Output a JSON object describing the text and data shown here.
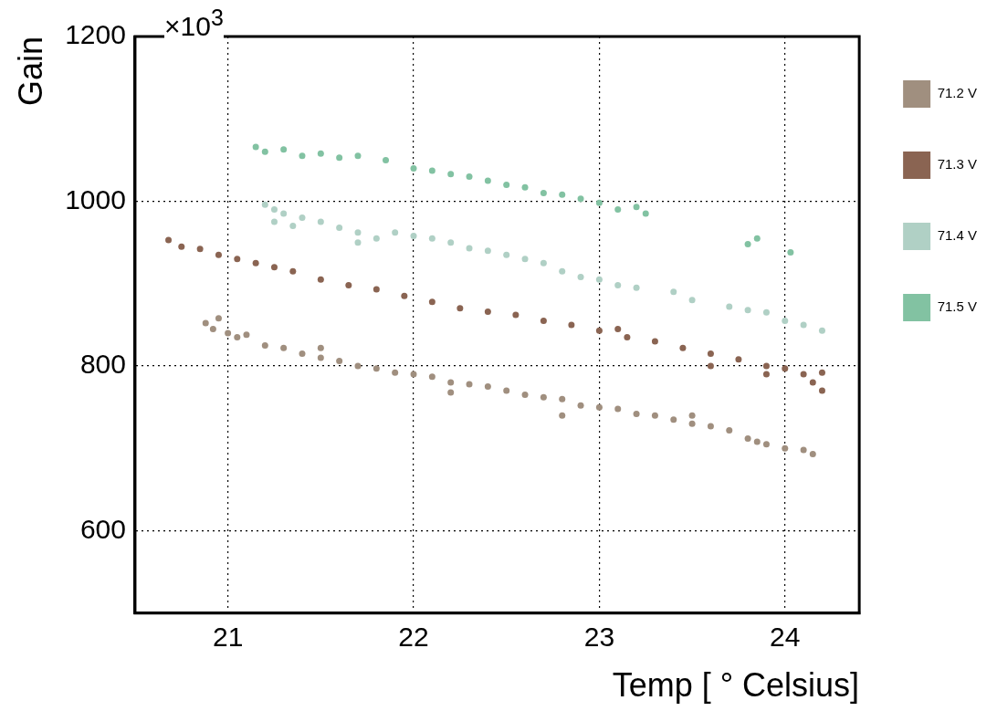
{
  "chart_data": {
    "type": "scatter",
    "xlabel": "Temp [ ° Celsius]",
    "ylabel": "Gain",
    "annotations": [
      "×10$^{3}$"
    ],
    "xlim": [
      20.5,
      24.4
    ],
    "xticks": [
      21,
      22,
      23,
      24
    ],
    "ylim": [
      500,
      1200
    ],
    "yticks": [
      600,
      800,
      1000,
      1200
    ],
    "grid": true,
    "legend": "right",
    "marker": "circle",
    "series": [
      {
        "name": "71.2 V",
        "color": "#a08f7f",
        "x": [
          20.88,
          20.92,
          20.95,
          21.0,
          21.05,
          21.1,
          21.2,
          21.3,
          21.4,
          21.5,
          21.5,
          21.6,
          21.7,
          21.8,
          21.9,
          22.0,
          22.1,
          22.2,
          22.2,
          22.3,
          22.4,
          22.5,
          22.6,
          22.7,
          22.8,
          22.8,
          22.9,
          23.0,
          23.1,
          23.2,
          23.3,
          23.4,
          23.5,
          23.5,
          23.6,
          23.7,
          23.8,
          23.85,
          23.9,
          24.0,
          24.1,
          24.15
        ],
        "values": [
          852,
          845,
          858,
          840,
          835,
          838,
          825,
          822,
          815,
          810,
          822,
          806,
          800,
          797,
          792,
          790,
          787,
          780,
          768,
          778,
          775,
          770,
          765,
          762,
          760,
          740,
          752,
          750,
          748,
          742,
          740,
          735,
          730,
          740,
          727,
          722,
          712,
          708,
          705,
          700,
          698,
          693
        ]
      },
      {
        "name": "71.3 V",
        "color": "#8a6452",
        "x": [
          20.68,
          20.75,
          20.85,
          20.95,
          21.05,
          21.15,
          21.25,
          21.35,
          21.5,
          21.65,
          21.8,
          21.95,
          22.1,
          22.25,
          22.4,
          22.55,
          22.7,
          22.85,
          23.0,
          23.1,
          23.15,
          23.3,
          23.45,
          23.6,
          23.6,
          23.75,
          23.9,
          23.9,
          24.0,
          24.1,
          24.15,
          24.2,
          24.2
        ],
        "values": [
          953,
          945,
          942,
          935,
          930,
          925,
          920,
          915,
          905,
          898,
          893,
          885,
          878,
          870,
          866,
          862,
          855,
          850,
          843,
          845,
          835,
          830,
          822,
          815,
          800,
          808,
          800,
          790,
          797,
          790,
          780,
          792,
          770
        ]
      },
      {
        "name": "71.4 V",
        "color": "#b0d0c5",
        "x": [
          21.2,
          21.25,
          21.25,
          21.3,
          21.35,
          21.4,
          21.5,
          21.6,
          21.7,
          21.7,
          21.8,
          21.9,
          22.0,
          22.1,
          22.2,
          22.3,
          22.4,
          22.5,
          22.6,
          22.7,
          22.8,
          22.9,
          23.0,
          23.1,
          23.2,
          23.4,
          23.5,
          23.7,
          23.8,
          23.9,
          24.0,
          24.1,
          24.2
        ],
        "values": [
          996,
          990,
          975,
          985,
          970,
          980,
          975,
          968,
          962,
          950,
          955,
          962,
          958,
          955,
          950,
          943,
          940,
          935,
          930,
          925,
          915,
          908,
          905,
          898,
          895,
          890,
          880,
          872,
          868,
          865,
          855,
          850,
          843
        ]
      },
      {
        "name": "71.5 V",
        "color": "#82c2a2",
        "x": [
          21.15,
          21.2,
          21.3,
          21.4,
          21.5,
          21.6,
          21.7,
          21.85,
          22.0,
          22.1,
          22.2,
          22.3,
          22.4,
          22.5,
          22.6,
          22.7,
          22.8,
          22.9,
          23.0,
          23.1,
          23.2,
          23.25,
          23.8,
          23.85,
          24.03
        ],
        "values": [
          1066,
          1060,
          1063,
          1055,
          1058,
          1053,
          1055,
          1050,
          1040,
          1037,
          1033,
          1030,
          1025,
          1020,
          1017,
          1010,
          1008,
          1003,
          998,
          990,
          993,
          985,
          948,
          955,
          938
        ]
      }
    ]
  }
}
